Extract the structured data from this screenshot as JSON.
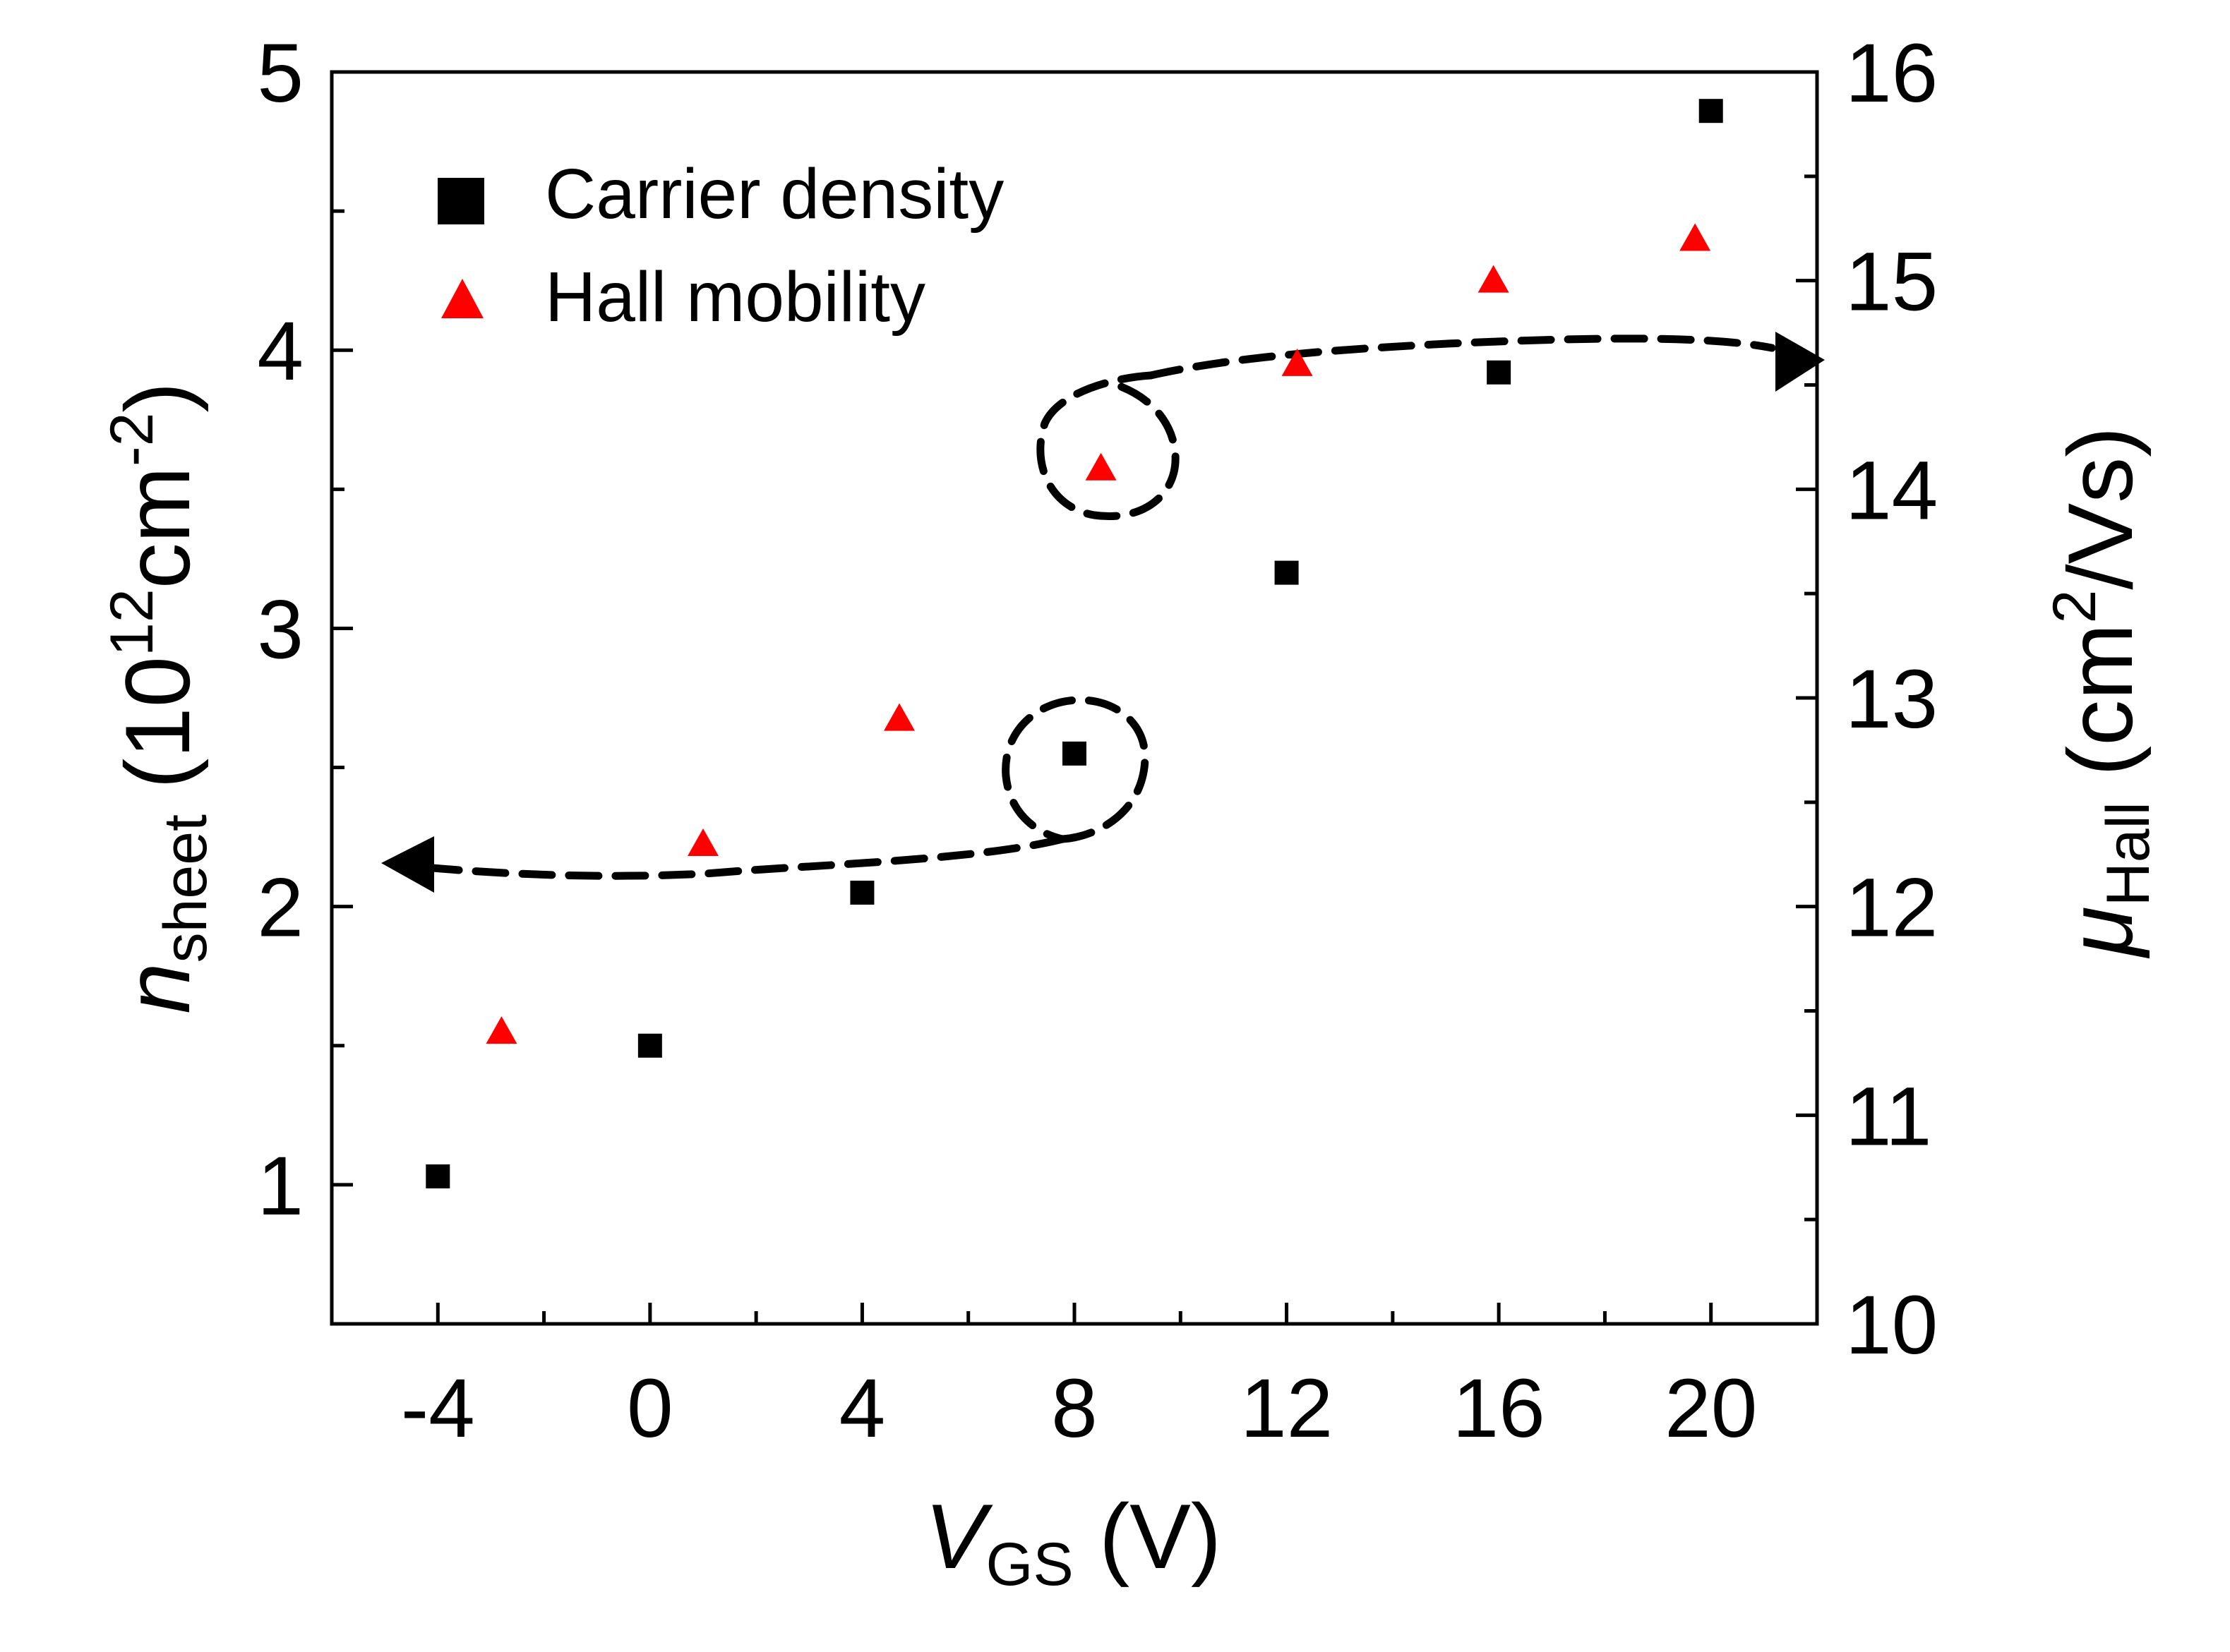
{
  "chart_data": {
    "type": "scatter",
    "xlabel": {
      "main": "V",
      "sub": "GS",
      "unit": " (V)"
    },
    "ylabel_left": {
      "main": "n",
      "sub": "sheet",
      "open": " (10",
      "sup1": "12",
      "mid": "cm",
      "sup2": "-2",
      "close": ")"
    },
    "ylabel_right": {
      "main": "μ",
      "sub": "Hall",
      "open": " (cm",
      "sup": "2",
      "close": "/Vs)"
    },
    "xlim": [
      -6,
      22
    ],
    "ylim_left": [
      0.5,
      5
    ],
    "ylim_right": [
      10,
      16
    ],
    "xticks": [
      -4,
      0,
      4,
      8,
      12,
      16,
      20
    ],
    "xtick_labels": [
      "-4",
      "0",
      "4",
      "8",
      "12",
      "16",
      "20"
    ],
    "yticks_left": [
      1,
      2,
      3,
      4,
      5
    ],
    "ytick_left_labels": [
      "1",
      "2",
      "3",
      "4",
      "5"
    ],
    "yticks_right": [
      10,
      11,
      12,
      13,
      14,
      15,
      16
    ],
    "ytick_right_labels": [
      "10",
      "11",
      "12",
      "13",
      "14",
      "15",
      "16"
    ],
    "series": [
      {
        "name": "Carrier density",
        "axis": "left",
        "marker": "square",
        "color": "#000000",
        "x": [
          -4,
          0,
          4,
          8,
          12,
          16,
          20
        ],
        "y": [
          1.03,
          1.5,
          2.05,
          2.55,
          3.2,
          3.92,
          4.86
        ]
      },
      {
        "name": "Hall mobility",
        "axis": "right",
        "marker": "triangle",
        "color": "#ff0000",
        "x": [
          -2.8,
          1,
          4.7,
          8.5,
          12.2,
          15.9,
          19.7
        ],
        "y": [
          11.4,
          12.3,
          12.9,
          14.1,
          14.6,
          15.0,
          15.2
        ]
      }
    ],
    "legend": {
      "placement": "top-left"
    },
    "annotations": [
      {
        "type": "dashed-circle-arrow",
        "target_series": "Carrier density",
        "around_x": 8,
        "points_to": "left axis"
      },
      {
        "type": "dashed-circle-arrow",
        "target_series": "Hall mobility",
        "around_x": 8.5,
        "points_to": "right axis"
      }
    ]
  }
}
